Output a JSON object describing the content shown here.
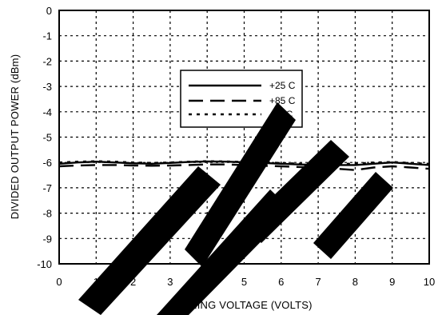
{
  "chart_data": {
    "type": "line",
    "xlabel": "TUNING VOLTAGE (VOLTS)",
    "ylabel": "DIVIDED OUTPUT POWER (dBm)",
    "xlim": [
      0,
      10
    ],
    "ylim": [
      -10,
      0
    ],
    "grid": true,
    "legend_position": "upper-center",
    "x_ticks": [
      "0",
      "1",
      "2",
      "3",
      "4",
      "5",
      "6",
      "7",
      "8",
      "9",
      "10"
    ],
    "y_ticks": [
      "0",
      "-1",
      "-2",
      "-3",
      "-4",
      "-5",
      "-6",
      "-7",
      "-8",
      "-9",
      "-10"
    ],
    "series": [
      {
        "name": "+25 C",
        "style": "solid",
        "x": [
          0,
          0.5,
          1,
          1.5,
          2,
          2.5,
          3,
          3.5,
          4,
          4.5,
          5,
          5.5,
          6,
          6.5,
          7,
          7.5,
          8,
          8.5,
          9,
          9.5,
          10
        ],
        "y": [
          -6.05,
          -6.0,
          -5.97,
          -6.0,
          -6.03,
          -6.05,
          -6.02,
          -5.98,
          -5.96,
          -5.97,
          -5.99,
          -6.02,
          -6.05,
          -6.08,
          -6.1,
          -6.1,
          -6.1,
          -6.05,
          -6.0,
          -6.05,
          -6.1
        ]
      },
      {
        "name": "+85 C",
        "style": "dashed",
        "x": [
          0,
          0.5,
          1,
          1.5,
          2,
          2.5,
          3,
          3.5,
          4,
          4.5,
          5,
          5.5,
          6,
          6.5,
          7,
          7.5,
          8,
          8.5,
          9,
          9.5,
          10
        ],
        "y": [
          -6.15,
          -6.12,
          -6.1,
          -6.1,
          -6.12,
          -6.13,
          -6.12,
          -6.1,
          -6.08,
          -6.08,
          -6.1,
          -6.13,
          -6.15,
          -6.18,
          -6.2,
          -6.25,
          -6.3,
          -6.2,
          -6.15,
          -6.2,
          -6.25
        ]
      },
      {
        "name": "-40 C",
        "style": "dotted",
        "x": [
          0,
          0.5,
          1,
          1.5,
          2,
          2.5,
          3,
          3.5,
          4,
          4.5,
          5,
          5.5,
          6,
          6.5,
          7,
          7.5,
          8,
          8.5,
          9,
          9.5,
          10
        ],
        "y": [
          -6.0,
          -5.97,
          -5.95,
          -5.97,
          -6.0,
          -6.02,
          -6.0,
          -5.97,
          -5.95,
          -5.96,
          -5.98,
          -6.0,
          -6.02,
          -6.05,
          -6.07,
          -6.05,
          -6.05,
          -6.0,
          -5.98,
          -6.02,
          -6.05
        ]
      }
    ]
  },
  "colors": {
    "background": "#ffffff",
    "ink": "#000000",
    "watermark": "#000000"
  }
}
